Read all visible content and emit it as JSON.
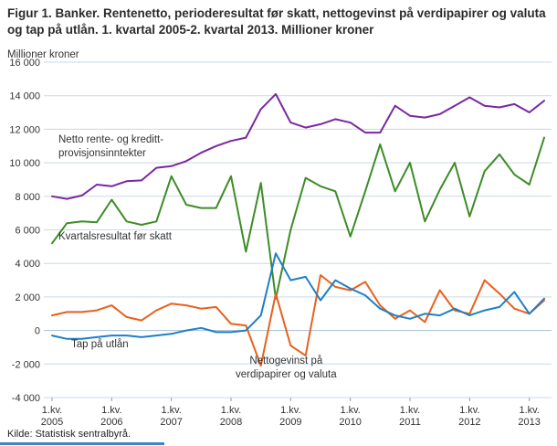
{
  "title": "Figur 1. Banker. Rentenetto, perioderesultat før skatt, nettogevinst på verdipapirer og valuta og tap på utlån. 1. kvartal 2005-2. kvartal 2013. Millioner kroner",
  "source": "Kilde: Statistisk sentralbyrå.",
  "annotations": {
    "rentenetto_line1": "Netto rente- og kreditt-",
    "rentenetto_line2": "provisjonsinntekter",
    "resultat": "Kvartalsresultat før skatt",
    "tap": "Tap på utlån",
    "gevinst_line1": "Nettogevinst på",
    "gevinst_line2": "verdipapirer og valuta"
  },
  "colors": {
    "grid": "#c9d9e8",
    "grid_zero": "#a8c0d4",
    "axis_text": "#333333",
    "tick": "#999999",
    "footer_rule": "#3d85c6"
  },
  "chart_data": {
    "type": "line",
    "ylabel": "Millioner kroner",
    "ylim": [
      -4000,
      16000
    ],
    "y_tick_step": 2000,
    "y_tick_labels": [
      "16 000",
      "14 000",
      "12 000",
      "10 000",
      "8 000",
      "6 000",
      "4 000",
      "2 000",
      "0",
      "-2 000",
      "-4 000"
    ],
    "x_tick_indices": [
      0,
      4,
      8,
      12,
      16,
      20,
      24,
      28,
      32
    ],
    "x_tick_label_top": "1.kv.",
    "x_tick_years": [
      "2005",
      "2006",
      "2007",
      "2008",
      "2009",
      "2010",
      "2011",
      "2012",
      "2013"
    ],
    "grid": "horizontal",
    "legend_position": "inline-annotations",
    "categories": [
      "1.kv. 2005",
      "2.kv. 2005",
      "3.kv. 2005",
      "4.kv. 2005",
      "1.kv. 2006",
      "2.kv. 2006",
      "3.kv. 2006",
      "4.kv. 2006",
      "1.kv. 2007",
      "2.kv. 2007",
      "3.kv. 2007",
      "4.kv. 2007",
      "1.kv. 2008",
      "2.kv. 2008",
      "3.kv. 2008",
      "4.kv. 2008",
      "1.kv. 2009",
      "2.kv. 2009",
      "3.kv. 2009",
      "4.kv. 2009",
      "1.kv. 2010",
      "2.kv. 2010",
      "3.kv. 2010",
      "4.kv. 2010",
      "1.kv. 2011",
      "2.kv. 2011",
      "3.kv. 2011",
      "4.kv. 2011",
      "1.kv. 2012",
      "2.kv. 2012",
      "3.kv. 2012",
      "4.kv. 2012",
      "1.kv. 2013",
      "2.kv. 2013"
    ],
    "series": [
      {
        "id": "rentenetto",
        "name": "Netto rente- og kredittprovisjonsinntekter",
        "color": "#7a28a0",
        "values": [
          8000,
          7850,
          8050,
          8700,
          8600,
          8900,
          8950,
          9700,
          9800,
          10100,
          10600,
          11000,
          11300,
          11500,
          13200,
          14100,
          12400,
          12100,
          12300,
          12600,
          12400,
          11800,
          11800,
          13400,
          12800,
          12700,
          12900,
          13400,
          13900,
          13400,
          13300,
          13500,
          13000,
          13700
        ]
      },
      {
        "id": "resultat",
        "name": "Kvartalsresultat før skatt",
        "color": "#3d8c25",
        "values": [
          5200,
          6400,
          6500,
          6450,
          7800,
          6500,
          6300,
          6500,
          9200,
          7500,
          7300,
          7300,
          9200,
          4700,
          8800,
          1900,
          6000,
          9100,
          8600,
          8300,
          5600,
          8300,
          11100,
          8300,
          10000,
          6500,
          8400,
          10000,
          6800,
          9500,
          10500,
          9300,
          8700,
          11500
        ]
      },
      {
        "id": "gevinst",
        "name": "Nettogevinst på verdipapirer og valuta",
        "color": "#e8601c",
        "values": [
          900,
          1100,
          1100,
          1200,
          1500,
          800,
          600,
          1200,
          1600,
          1500,
          1300,
          1400,
          400,
          300,
          -2100,
          2200,
          -900,
          -1500,
          3300,
          2600,
          2400,
          2900,
          1500,
          700,
          1200,
          500,
          2400,
          1200,
          1000,
          3000,
          2200,
          1300,
          1000,
          1800
        ]
      },
      {
        "id": "tap",
        "name": "Tap på utlån",
        "color": "#1f7fc4",
        "values": [
          -300,
          -500,
          -500,
          -400,
          -300,
          -300,
          -400,
          -300,
          -200,
          0,
          150,
          -100,
          -100,
          0,
          900,
          4600,
          3000,
          3200,
          1800,
          3000,
          2500,
          2100,
          1300,
          900,
          700,
          1000,
          900,
          1300,
          900,
          1200,
          1400,
          2300,
          1000,
          1900
        ]
      }
    ]
  }
}
